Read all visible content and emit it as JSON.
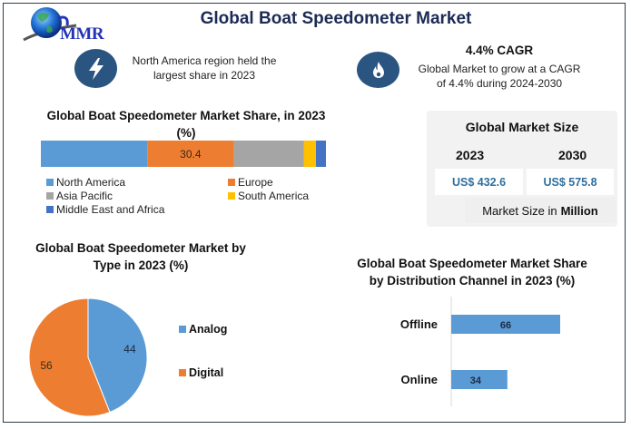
{
  "header": {
    "title": "Global Boat Speedometer Market",
    "logo_text": "MMR"
  },
  "highlights": [
    {
      "icon": "lightning-icon",
      "title": "",
      "text_line1": "North America region held the",
      "text_line2": "largest share in 2023"
    },
    {
      "icon": "flame-icon",
      "title": "4.4% CAGR",
      "text_line1": "Global Market to grow at a CAGR",
      "text_line2": "of 4.4% during 2024-2030"
    }
  ],
  "market_size": {
    "title": "Global Market Size",
    "years": [
      "2023",
      "2030"
    ],
    "values": [
      "US$ 432.6",
      "US$ 575.8"
    ],
    "unit_prefix": "Market Size in",
    "unit_bold": "Million"
  },
  "colors": {
    "icon_bg": "#2b5581",
    "value_text": "#2f6f9e",
    "north_america": "#5b9bd5",
    "europe": "#ed7d31",
    "asia_pacific": "#a5a5a5",
    "south_america": "#ffc000",
    "mea": "#4472c4"
  },
  "chart_data": [
    {
      "type": "bar",
      "orientation": "horizontal-stacked",
      "title": "Global Boat Speedometer Market Share, in 2023 (%)",
      "categories": [
        "2023"
      ],
      "series": [
        {
          "name": "North America",
          "values": [
            37.3
          ],
          "color": "#5b9bd5"
        },
        {
          "name": "Europe",
          "values": [
            30.4
          ],
          "color": "#ed7d31",
          "label": "30.4"
        },
        {
          "name": "Asia Pacific",
          "values": [
            24.5
          ],
          "color": "#a5a5a5"
        },
        {
          "name": "South America",
          "values": [
            4.3
          ],
          "color": "#ffc000"
        },
        {
          "name": "Middle East and Africa",
          "values": [
            3.5
          ],
          "color": "#4472c4"
        }
      ],
      "legend": "bottom",
      "xlim": [
        0,
        100
      ],
      "grid": false
    },
    {
      "type": "pie",
      "title": "Global Boat Speedometer Market by Type in 2023 (%)",
      "title_line1": "Global Boat Speedometer Market by",
      "title_line2": "Type in 2023 (%)",
      "categories": [
        "Analog",
        "Digital"
      ],
      "values": [
        44,
        56
      ],
      "colors": [
        "#5b9bd5",
        "#ed7d31"
      ],
      "legend": "right"
    },
    {
      "type": "bar",
      "orientation": "horizontal",
      "title": "Global Boat Speedometer Market Share by Distribution Channel in 2023 (%)",
      "title_line1": "Global Boat Speedometer Market Share",
      "title_line2": "by Distribution Channel in 2023 (%)",
      "categories": [
        "Offline",
        "Online"
      ],
      "values": [
        66,
        34
      ],
      "color": "#5b9bd5",
      "xlim": [
        0,
        100
      ],
      "grid": false
    }
  ]
}
